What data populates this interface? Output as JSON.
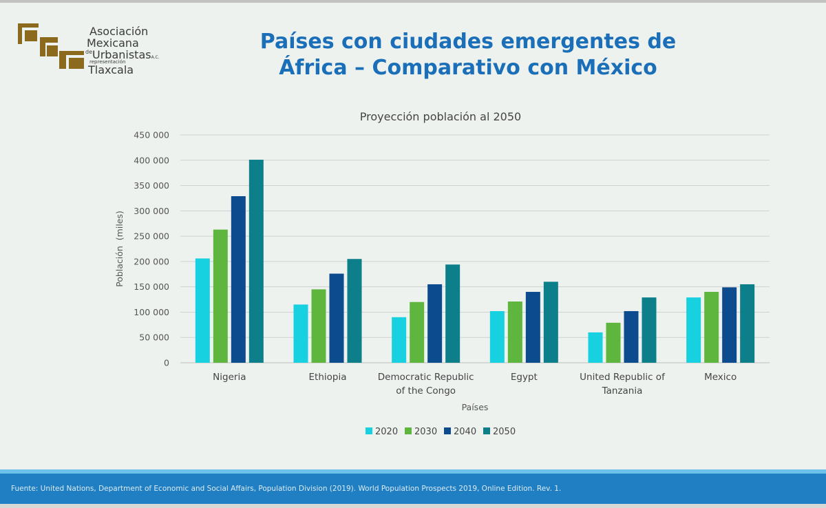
{
  "header": {
    "title_line1": "Países con ciudades emergentes de",
    "title_line2": "África – Comparativo con México"
  },
  "logo": {
    "line1": "Asociación",
    "line2": "Mexicana",
    "line3_prefix": "de",
    "line3": "Urbanistas",
    "line3_suffix": "A.C.",
    "line4": "representación",
    "line5": "Tlaxcala",
    "color": "#8b6a1e"
  },
  "chart_data": {
    "type": "bar",
    "title": "Proyección población al 2050",
    "xlabel": "Países",
    "ylabel": "Población  (miles)",
    "ylim": [
      0,
      450000
    ],
    "yticks": [
      0,
      50000,
      100000,
      150000,
      200000,
      250000,
      300000,
      350000,
      400000,
      450000
    ],
    "ytick_labels": [
      "0",
      "50 000",
      "100 000",
      "150 000",
      "200 000",
      "250 000",
      "300 000",
      "350 000",
      "400 000",
      "450 000"
    ],
    "grid": true,
    "legend_position": "bottom",
    "categories": [
      [
        "Nigeria"
      ],
      [
        "Ethiopia"
      ],
      [
        "Democratic Republic",
        "of the Congo"
      ],
      [
        "Egypt"
      ],
      [
        "United Republic of",
        "Tanzania"
      ],
      [
        "Mexico"
      ]
    ],
    "series": [
      {
        "name": "2020",
        "color": "#17d0e0",
        "values": [
          206000,
          115000,
          90000,
          102000,
          60000,
          129000
        ]
      },
      {
        "name": "2030",
        "color": "#5fb63f",
        "values": [
          263000,
          145000,
          120000,
          121000,
          79000,
          140000
        ]
      },
      {
        "name": "2040",
        "color": "#0b4b8e",
        "values": [
          329000,
          176000,
          155000,
          140000,
          102000,
          149000
        ]
      },
      {
        "name": "2050",
        "color": "#0d7f8a",
        "values": [
          401000,
          205000,
          194000,
          160000,
          129000,
          155000
        ]
      }
    ]
  },
  "footer": {
    "source": "Fuente: United Nations, Department of Economic and Social Affairs, Population Division (2019). World Population Prospects 2019, Online Edition. Rev. 1."
  }
}
